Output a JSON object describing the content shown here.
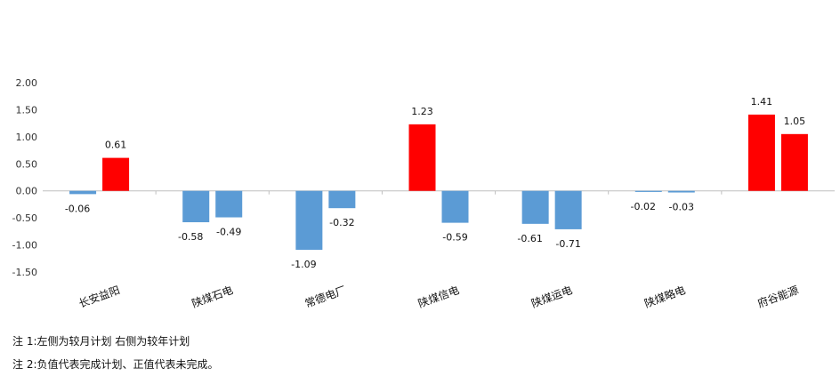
{
  "chart_data": {
    "type": "bar",
    "categories": [
      "长安益阳",
      "陕煤石电",
      "常德电厂",
      "陕煤信电",
      "陕煤运电",
      "陕煤略电",
      "府谷能源"
    ],
    "series": [
      {
        "values": [
          -0.06,
          -0.58,
          -1.09,
          1.23,
          -0.61,
          -0.02,
          1.41
        ]
      },
      {
        "values": [
          0.61,
          -0.49,
          -0.32,
          -0.59,
          -0.71,
          -0.03,
          1.05
        ]
      }
    ],
    "data_labels": [
      [
        "-0.06",
        "-0.58",
        "-1.09",
        "1.23",
        "-0.61",
        "-0.02",
        "1.41"
      ],
      [
        "0.61",
        "-0.49",
        "-0.32",
        "-0.59",
        "-0.71",
        "-0.03",
        "1.05"
      ]
    ],
    "yticks": [
      "2.00",
      "1.50",
      "1.00",
      "0.50",
      "0.00",
      "-0.50",
      "-1.00",
      "-1.50"
    ],
    "ylim": [
      -1.5,
      2.0
    ],
    "title": "",
    "xlabel": "",
    "ylabel": "",
    "grid": false,
    "colors": {
      "positive": "#ff0000",
      "negative": "#5b9bd5",
      "axis": "#bfbfbf"
    }
  },
  "notes": [
    "注 1:左侧为较月计划 右侧为较年计划",
    "注 2:负值代表完成计划、正值代表未完成。"
  ]
}
